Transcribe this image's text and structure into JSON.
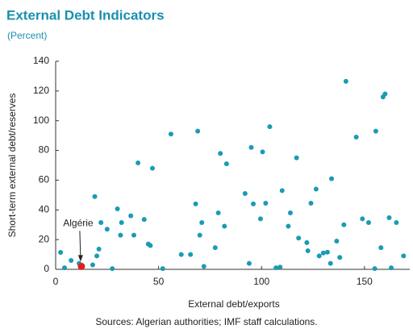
{
  "chart_data": {
    "type": "scatter",
    "title": "External Debt Indicators",
    "subtitle": "(Percent)",
    "x_label": "External debt/exports",
    "y_label": "Short-term external debt/reserves",
    "source": "Sources: Algerian authorities; IMF staff calculations.",
    "annotation": "Algérie",
    "xlim": [
      0,
      172
    ],
    "xticks": [
      0,
      50,
      100,
      150
    ],
    "ylim": [
      0,
      140
    ],
    "yticks": [
      0,
      20,
      40,
      60,
      80,
      100,
      120,
      140
    ],
    "grid": false,
    "series": [
      {
        "color": "#1a9bb5",
        "x": [
          2.4,
          4.3,
          7.5,
          11.4,
          18,
          19,
          20,
          21,
          22,
          25,
          27.5,
          30,
          31.5,
          32,
          36.5,
          38,
          40,
          43,
          45,
          46,
          47,
          52,
          56,
          61,
          65.5,
          68,
          69,
          70,
          71,
          72,
          77.5,
          79,
          80,
          82,
          83,
          92,
          94,
          95,
          96,
          99.5,
          100.5,
          102,
          104,
          107,
          109,
          110,
          113,
          114,
          117,
          118,
          122,
          122.5,
          124,
          126.5,
          128,
          130,
          132,
          133.5,
          134,
          136.5,
          138,
          140,
          141,
          146,
          149,
          152,
          155,
          155.5,
          158,
          159,
          160,
          162,
          163,
          165.5,
          169
        ],
        "values": [
          11.4,
          1,
          6,
          4,
          3,
          49,
          9,
          13.6,
          31.5,
          27,
          0.5,
          40.7,
          23,
          31.5,
          36,
          23,
          71.6,
          33.6,
          17,
          16,
          68,
          0.5,
          91,
          10,
          10,
          44,
          93,
          23,
          31.5,
          2,
          14.6,
          38,
          78,
          29,
          71,
          51,
          4,
          82,
          44,
          34,
          79,
          44.5,
          96,
          1,
          1.5,
          53,
          29,
          38,
          75,
          21,
          18,
          12.5,
          44.5,
          54,
          9,
          11,
          11.5,
          4,
          61,
          19,
          8,
          30,
          126.5,
          89,
          34,
          31.5,
          0.5,
          93,
          14.6,
          116,
          118,
          34.7,
          1,
          31.5,
          9
        ]
      },
      {
        "color": "#e02020",
        "x": [
          12.5
        ],
        "values": [
          2
        ]
      }
    ]
  }
}
